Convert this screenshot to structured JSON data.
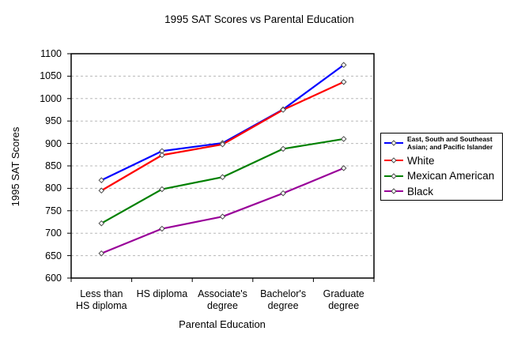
{
  "chart_data": {
    "type": "line",
    "title": "1995 SAT Scores vs Parental Education",
    "xlabel": "Parental Education",
    "ylabel": "1995 SAT Scores",
    "ylim": [
      600,
      1100
    ],
    "yticks": [
      600,
      650,
      700,
      750,
      800,
      850,
      900,
      950,
      1000,
      1050,
      1100
    ],
    "grid": "horizontal dashed gridlines at every 50",
    "legend_position": "right",
    "marker": "open-diamond",
    "categories": [
      "Less than HS diploma",
      "HS diploma",
      "Associate's degree",
      "Bachelor's degree",
      "Graduate degree"
    ],
    "series": [
      {
        "name": "East, South and Southeast Asian; and Pacific Islander",
        "color": "#0000ff",
        "values": [
          818,
          883,
          901,
          976,
          1075
        ]
      },
      {
        "name": "White",
        "color": "#ff0000",
        "values": [
          795,
          874,
          898,
          975,
          1037
        ]
      },
      {
        "name": "Mexican American",
        "color": "#008000",
        "values": [
          722,
          798,
          825,
          888,
          910
        ]
      },
      {
        "name": "Black",
        "color": "#990099",
        "values": [
          655,
          710,
          737,
          789,
          845
        ]
      }
    ]
  }
}
